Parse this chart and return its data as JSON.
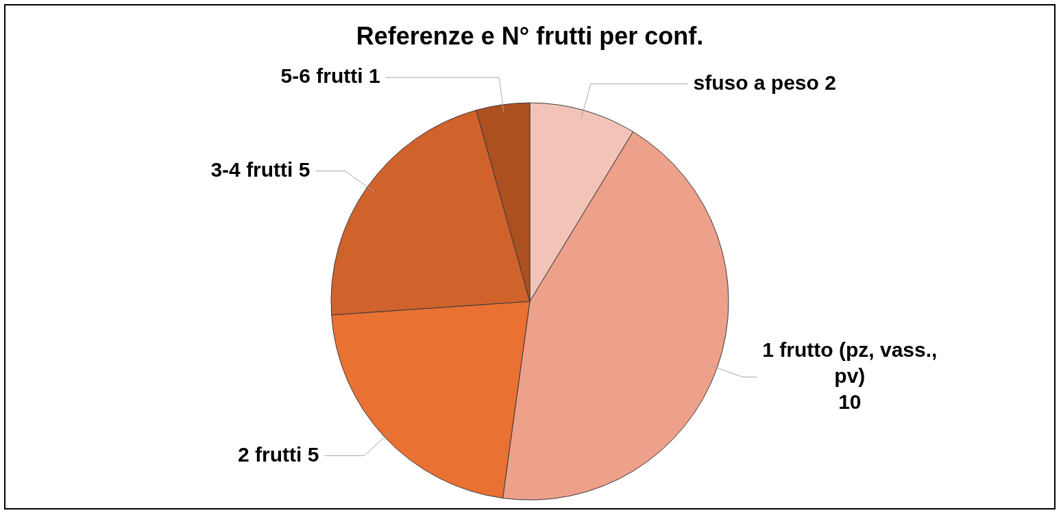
{
  "chart_data": {
    "type": "pie",
    "title": "Referenze e N° frutti per conf.",
    "categories": [
      "sfuso a peso",
      "1 frutto (pz, vass., pv)",
      "2 frutti",
      "3-4 frutti",
      "5-6 frutti"
    ],
    "values": [
      2,
      10,
      5,
      5,
      1
    ],
    "colors": [
      "#f2c4b8",
      "#eda08a",
      "#e97132",
      "#d0622c",
      "#ad5020"
    ],
    "data_labels": true,
    "legend": false
  }
}
